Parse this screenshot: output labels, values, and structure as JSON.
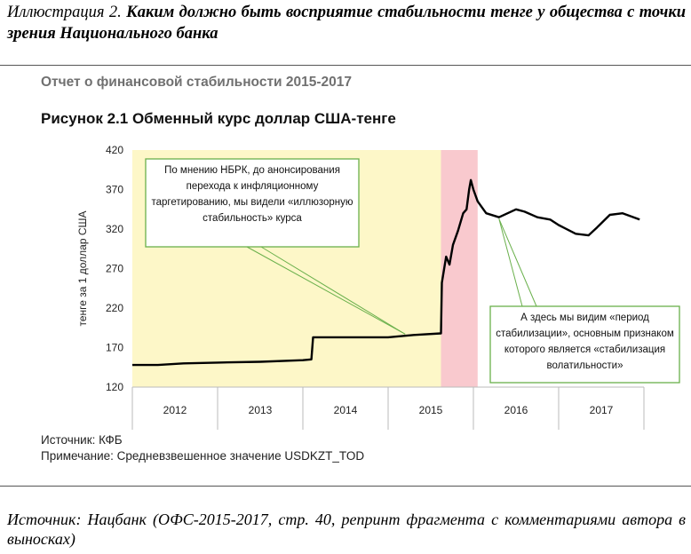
{
  "caption": {
    "lead": "Иллюстрация 2.",
    "text": "Каким должно быть восприятие стабильности тенге у общества с точки зрения Национального банка"
  },
  "report_title": "Отчет о финансовой стабильности 2015-2017",
  "figure_title": "Рисунок 2.1 Обменный курс доллар США-тенге",
  "notes": {
    "source": "Источник: КФБ",
    "remark": "Примечание: Средневзвешенное значение USDKZT_TOD"
  },
  "footer_source": "Источник: Нацбанк (ОФС-2015-2017, стр. 40, репринт фрагмента с комментариями автора в выносках)",
  "colors": {
    "line": "#000000",
    "highlight_yellow": "#fdf7c8",
    "highlight_pink": "#f9c9ce",
    "callout_border": "#6ab04c",
    "callout_line": "#6ab04c"
  },
  "chart_data": {
    "type": "line",
    "title": "Рисунок 2.1 Обменный курс доллар США-тенге",
    "ylabel": "тенге за 1 доллар США",
    "xlabel": "",
    "ylim": [
      120,
      420
    ],
    "yticks": [
      120,
      170,
      220,
      270,
      320,
      370,
      420
    ],
    "xlim": [
      2012.0,
      2018.0
    ],
    "year_labels": [
      "2012",
      "2013",
      "2014",
      "2015",
      "2016",
      "2017"
    ],
    "grid": false,
    "shaded_ranges": [
      {
        "from": 2012.0,
        "to": 2015.62,
        "color": "yellow"
      },
      {
        "from": 2015.62,
        "to": 2016.05,
        "color": "pink"
      }
    ],
    "series": [
      {
        "x": [
          2012.0,
          2012.3,
          2012.6,
          2013.0,
          2013.5,
          2014.0,
          2014.1,
          2014.12,
          2014.4,
          2014.7,
          2015.0,
          2015.3,
          2015.62,
          2015.63,
          2015.68,
          2015.72,
          2015.76,
          2015.82,
          2015.88,
          2015.92,
          2015.95,
          2015.97,
          2016.0,
          2016.05,
          2016.15,
          2016.3,
          2016.5,
          2016.6,
          2016.75,
          2016.9,
          2017.0,
          2017.2,
          2017.35,
          2017.45,
          2017.6,
          2017.75,
          2017.95
        ],
        "y": [
          148,
          148,
          150,
          151,
          152,
          154,
          155,
          183,
          183,
          183,
          183,
          186,
          188,
          252,
          285,
          275,
          300,
          318,
          340,
          345,
          370,
          382,
          370,
          355,
          340,
          335,
          345,
          342,
          335,
          332,
          325,
          314,
          312,
          322,
          338,
          340,
          332
        ]
      }
    ],
    "annotations": [
      {
        "text": "По мнению НБРК, до анонсирования перехода к инфляционному таргетированию, мы видели «иллюзорную стабильность» курса",
        "points_to": [
          2015.2,
          187
        ]
      },
      {
        "text": "А здесь мы видим «период стабилизации», основным признаком которого является «стабилизация волатильности»",
        "points_to": [
          2016.3,
          333
        ]
      }
    ]
  }
}
